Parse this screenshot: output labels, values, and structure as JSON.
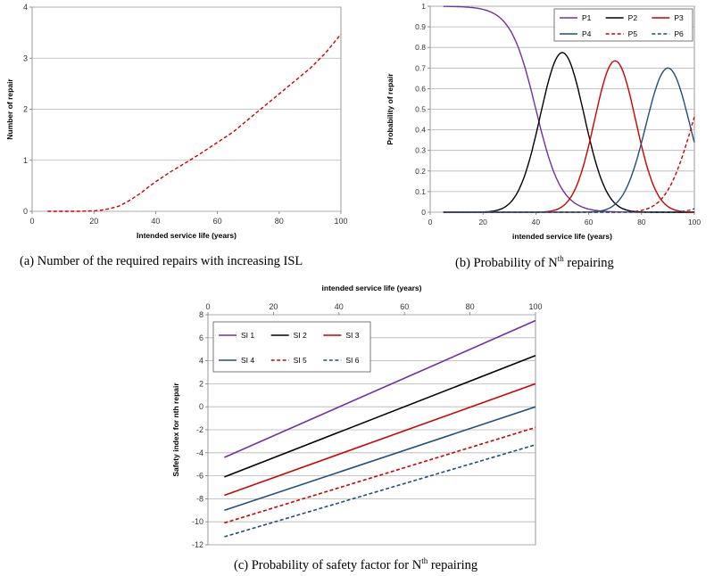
{
  "captions": {
    "a": "(a) Number of the required repairs with increasing ISL",
    "b_prefix": "(b) Probability of N",
    "b_sup": "th",
    "b_suffix": " repairing",
    "c_prefix": "(c) Probability of safety factor for N",
    "c_sup": "th",
    "c_suffix": " repairing"
  },
  "chart_data": [
    {
      "id": "a",
      "type": "line",
      "title": "",
      "xlabel": "Intended service life (years)",
      "ylabel": "Number of repair",
      "xlim": [
        0,
        100
      ],
      "ylim": [
        0,
        4
      ],
      "xticks": [
        0,
        20,
        40,
        60,
        80,
        100
      ],
      "yticks": [
        0,
        1,
        2,
        3,
        4
      ],
      "grid": "horizontal",
      "legend": "none",
      "series": [
        {
          "name": "Number of repair",
          "color": "#cc0000",
          "dash": "dashed",
          "x": [
            5,
            10,
            15,
            20,
            22,
            25,
            28,
            30,
            32,
            35,
            38,
            40,
            43,
            45,
            50,
            55,
            60,
            65,
            70,
            75,
            80,
            85,
            90,
            95,
            100
          ],
          "y": [
            0,
            0,
            0,
            0.01,
            0.02,
            0.05,
            0.1,
            0.16,
            0.23,
            0.35,
            0.49,
            0.58,
            0.7,
            0.78,
            0.96,
            1.15,
            1.35,
            1.55,
            1.8,
            2.05,
            2.3,
            2.55,
            2.8,
            3.1,
            3.47
          ]
        }
      ]
    },
    {
      "id": "b",
      "type": "line",
      "title": "",
      "xlabel": "intended service life (years)",
      "ylabel": "Probability of repair",
      "xlim": [
        0,
        100
      ],
      "ylim": [
        0,
        1
      ],
      "xticks": [
        0,
        20,
        40,
        60,
        80,
        100
      ],
      "yticks": [
        0,
        0.1,
        0.2,
        0.3,
        0.4,
        0.5,
        0.6,
        0.7,
        0.8,
        0.9,
        1
      ],
      "ytick_labels": [
        "0",
        "0.1",
        "0.2",
        "0.3",
        "0.4",
        "0.5",
        "0.6",
        "0.7",
        "0.8",
        "0.9",
        "1"
      ],
      "grid": "horizontal",
      "legend": "top-right",
      "series": [
        {
          "name": "P1",
          "color": "#7030a0",
          "dash": "solid",
          "kind": "sigmoid",
          "mid": 40,
          "scale": 4.8,
          "peak": 1,
          "x0": 5
        },
        {
          "name": "P2",
          "color": "#000000",
          "dash": "solid",
          "kind": "gauss",
          "mu": 50,
          "sigma": 8.3,
          "peak": 0.775,
          "x0": 5
        },
        {
          "name": "P3",
          "color": "#cc0000",
          "dash": "solid",
          "kind": "gauss",
          "mu": 70,
          "sigma": 7.8,
          "peak": 0.735,
          "x0": 5
        },
        {
          "name": "P4",
          "color": "#1f4e79",
          "dash": "solid",
          "kind": "gauss",
          "mu": 90,
          "sigma": 8.3,
          "peak": 0.7,
          "x0": 5
        },
        {
          "name": "P5",
          "color": "#cc0000",
          "dash": "dashed",
          "kind": "gauss",
          "mu": 109,
          "sigma": 9.8,
          "peak": 0.705,
          "x0": 5
        },
        {
          "name": "P6",
          "color": "#1f4e79",
          "dash": "dashed",
          "kind": "gauss",
          "mu": 125,
          "sigma": 9.5,
          "peak": 0.55,
          "x0": 5
        }
      ]
    },
    {
      "id": "c",
      "type": "line",
      "title": "",
      "xlabel": "intended service life (years)",
      "ylabel": "Safety index for nth repair",
      "xaxis_position": "top",
      "xlim": [
        0,
        100
      ],
      "ylim": [
        -12,
        8
      ],
      "xticks": [
        0,
        20,
        40,
        60,
        80,
        100
      ],
      "yticks": [
        -12,
        -10,
        -8,
        -6,
        -4,
        -2,
        0,
        2,
        4,
        6,
        8
      ],
      "grid": "horizontal",
      "legend": "top-left",
      "series": [
        {
          "name": "SI 1",
          "color": "#7030a0",
          "dash": "solid",
          "x": [
            5,
            100
          ],
          "y": [
            -4.4,
            7.5
          ]
        },
        {
          "name": "SI 2",
          "color": "#000000",
          "dash": "solid",
          "x": [
            5,
            100
          ],
          "y": [
            -6.1,
            4.45
          ]
        },
        {
          "name": "SI 3",
          "color": "#cc0000",
          "dash": "solid",
          "x": [
            5,
            100
          ],
          "y": [
            -7.7,
            2.0
          ]
        },
        {
          "name": "SI 4",
          "color": "#1f4e79",
          "dash": "solid",
          "x": [
            5,
            100
          ],
          "y": [
            -9.0,
            0.0
          ]
        },
        {
          "name": "SI 5",
          "color": "#cc0000",
          "dash": "dashed",
          "x": [
            5,
            100
          ],
          "y": [
            -10.1,
            -1.8
          ]
        },
        {
          "name": "SI 6",
          "color": "#1f4e79",
          "dash": "dashed",
          "x": [
            5,
            100
          ],
          "y": [
            -11.3,
            -3.3
          ]
        }
      ]
    }
  ]
}
